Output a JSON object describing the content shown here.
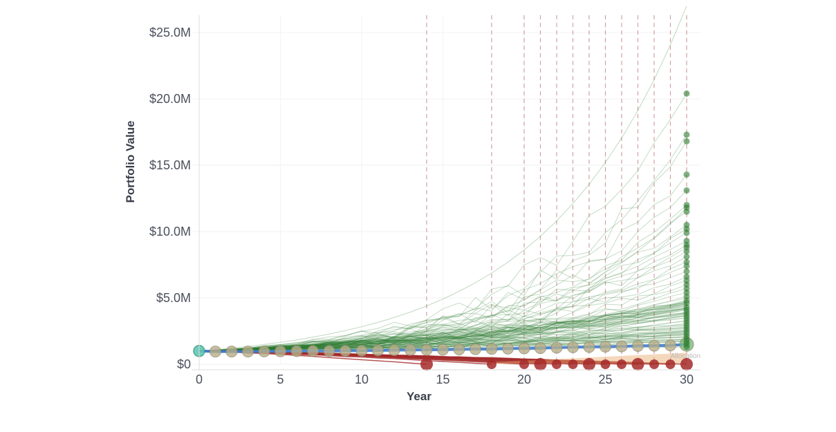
{
  "chart_data": {
    "type": "line",
    "title": "",
    "xlabel": "Year",
    "ylabel": "Portfolio Value",
    "xlim": [
      0,
      30
    ],
    "ylim": [
      0,
      26000000
    ],
    "x_ticks": [
      0,
      5,
      10,
      15,
      20,
      25,
      30
    ],
    "y_ticks": [
      {
        "value": 0,
        "label": "$0"
      },
      {
        "value": 5000000,
        "label": "$5.0M"
      },
      {
        "value": 10000000,
        "label": "$10.0M"
      },
      {
        "value": 15000000,
        "label": "$15.0M"
      },
      {
        "value": 20000000,
        "label": "$20.0M"
      },
      {
        "value": 25000000,
        "label": "$25.0M"
      }
    ],
    "grid": true,
    "start_value": 1000000,
    "depletion_years": [
      14,
      18,
      20,
      21,
      22,
      23,
      24,
      25,
      26,
      27,
      28,
      29,
      30
    ],
    "median_path": {
      "x": [
        0,
        1,
        2,
        3,
        4,
        5,
        6,
        7,
        8,
        9,
        10,
        11,
        12,
        13,
        14,
        15,
        16,
        17,
        18,
        19,
        20,
        21,
        22,
        23,
        24,
        25,
        26,
        27,
        28,
        29,
        30
      ],
      "y": [
        1000000,
        960000,
        960000,
        960000,
        970000,
        980000,
        990000,
        1000000,
        1000000,
        1010000,
        1020000,
        1040000,
        1060000,
        1080000,
        1090000,
        1100000,
        1120000,
        1140000,
        1160000,
        1180000,
        1200000,
        1220000,
        1250000,
        1280000,
        1300000,
        1330000,
        1350000,
        1380000,
        1400000,
        1420000,
        1500000
      ]
    },
    "final_values": [
      20400000,
      17300000,
      16800000,
      14300000,
      13100000,
      12000000,
      11800000,
      11500000,
      10500000,
      10200000,
      9900000,
      9300000,
      9000000,
      8800000,
      8500000,
      8100000,
      7700000,
      7400000,
      7000000,
      6600000,
      6300000,
      6000000,
      5700000,
      5400000,
      5100000,
      4800000,
      4600000,
      4300000,
      4100000,
      3900000,
      3700000,
      3500000,
      3300000,
      3100000,
      2900000,
      2700000,
      2500000,
      2300000,
      2100000,
      1900000,
      1700000,
      1500000,
      1300000
    ],
    "annotation": "Allocation",
    "colors": {
      "success": "#2e7d32",
      "failure": "#a52a2a",
      "median": "#3b7dd8",
      "start_marker": "#63c7b2",
      "depletion_line": "#c98a8a",
      "band": "#e8a86a"
    }
  }
}
